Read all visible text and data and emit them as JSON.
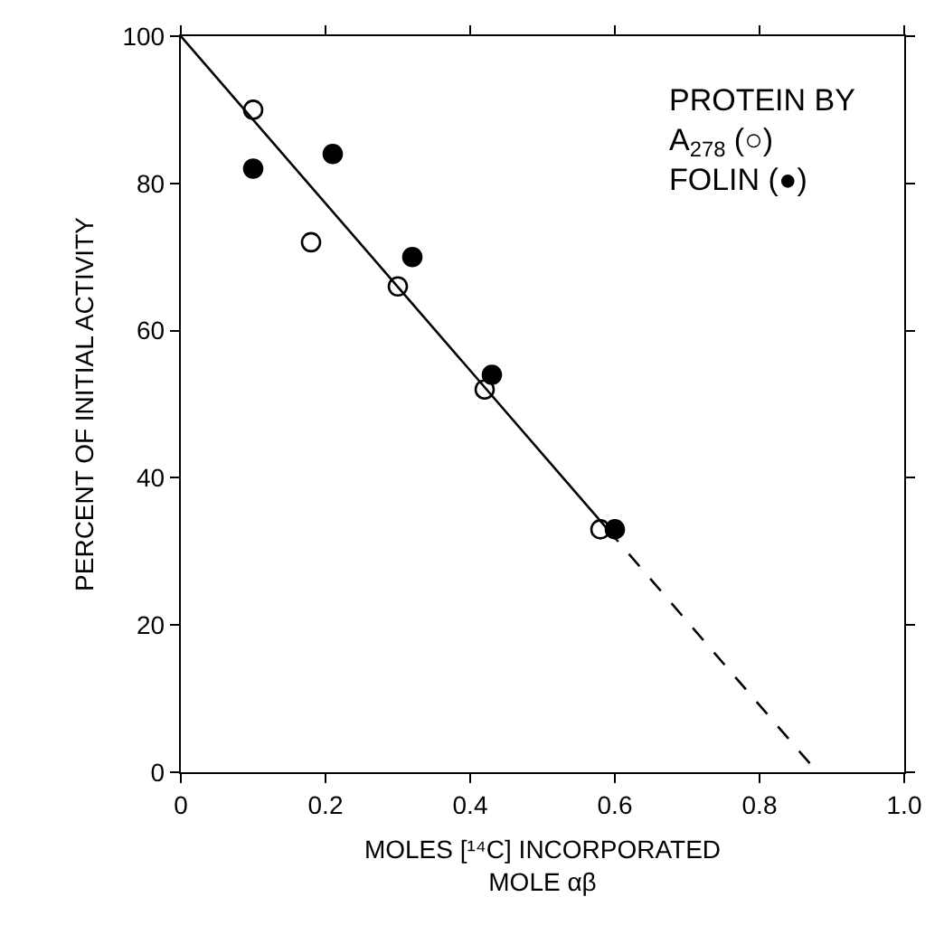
{
  "chart_data": {
    "type": "scatter",
    "xlabel": "MOLES [¹⁴C] INCORPORATED\nMOLE αβ",
    "ylabel": "PERCENT OF INITIAL ACTIVITY",
    "annotations": [
      "PROTEIN BY\nA$_{278}$ (○)\nFOLIN (●)"
    ],
    "series": [
      {
        "color": "#ffffff",
        "marker": "circle",
        "x": [
          0.1,
          0.18,
          0.3,
          0.42,
          0.58
        ],
        "values": [
          90,
          72,
          66,
          52,
          33
        ]
      },
      {
        "color": "#000000",
        "marker": "circle",
        "x": [
          0.1,
          0.21,
          0.32,
          0.43,
          0.6
        ],
        "values": [
          82,
          84,
          70,
          54,
          33
        ]
      },
      {
        "type": "line",
        "color": "#000000",
        "line_style": "solid",
        "marker": "none",
        "x": [
          0,
          0.59
        ],
        "values": [
          100,
          33
        ]
      },
      {
        "type": "line",
        "color": "#000000",
        "line_style": "dashed",
        "marker": "none",
        "x": [
          0.59,
          0.88
        ],
        "values": [
          33,
          0
        ]
      }
    ],
    "xlim": [
      0,
      1
    ],
    "ylim": [
      0,
      100
    ],
    "xticks": [
      0,
      0.2,
      0.4,
      0.6,
      0.8,
      {
        "value": 1,
        "label": "1.0"
      }
    ],
    "yticks": [
      0,
      20,
      40,
      60,
      80,
      100
    ],
    "grid": false
  }
}
